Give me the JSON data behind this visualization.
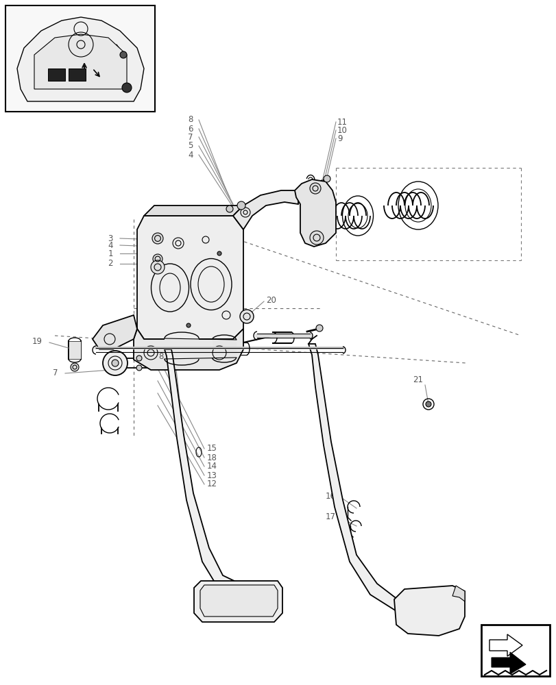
{
  "bg_color": "#ffffff",
  "line_color": "#000000",
  "fig_width": 8.12,
  "fig_height": 10.0,
  "dpi": 100,
  "lw_main": 1.3,
  "lw_thin": 0.8,
  "lw_medium": 1.0,
  "font_size": 8.5,
  "label_color": "#555555"
}
